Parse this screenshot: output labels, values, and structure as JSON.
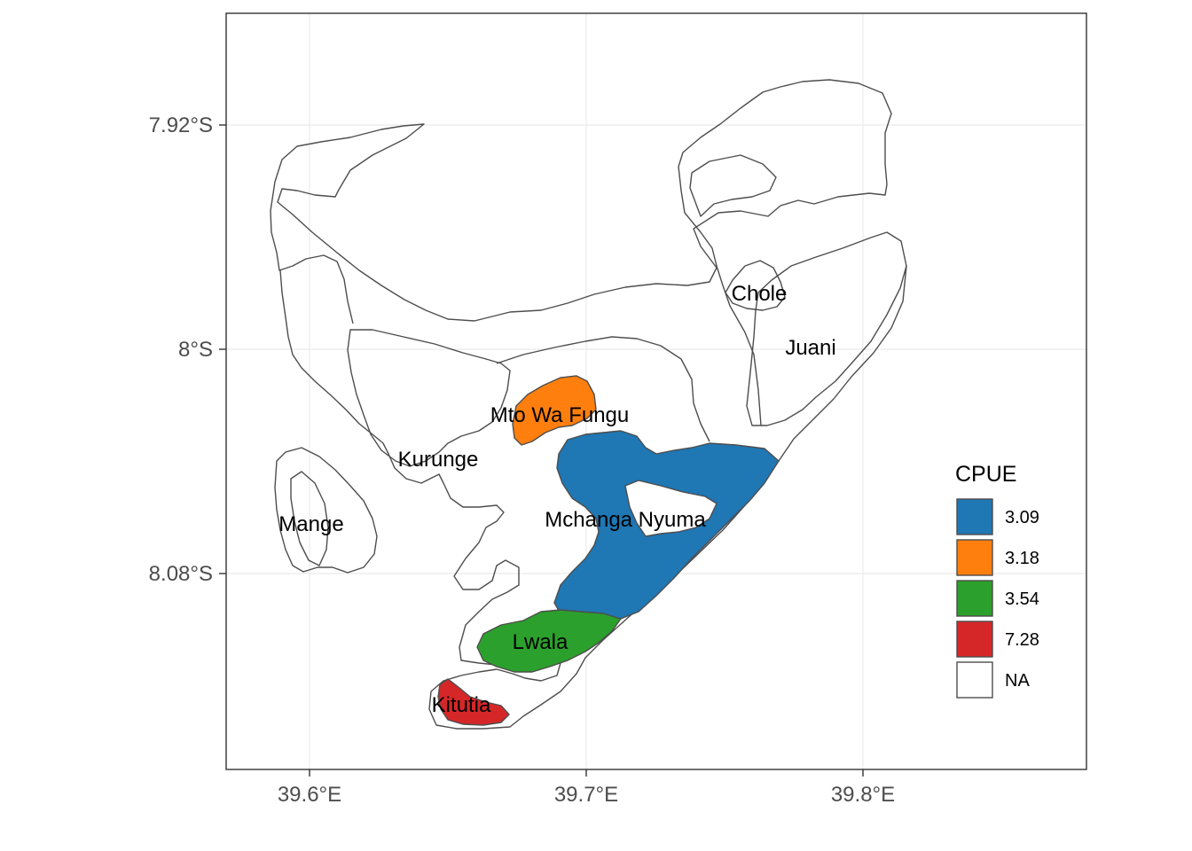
{
  "map": {
    "x_ticks": [
      {
        "value": 39.6,
        "label": "39.6°E"
      },
      {
        "value": 39.7,
        "label": "39.7°E"
      },
      {
        "value": 39.8,
        "label": "39.8°E"
      }
    ],
    "y_ticks": [
      {
        "value": -7.92,
        "label": "7.92°S"
      },
      {
        "value": -8.0,
        "label": "8°S"
      },
      {
        "value": -8.08,
        "label": "8.08°S"
      }
    ],
    "regions": [
      {
        "name": "Chole",
        "cpue": null
      },
      {
        "name": "Juani",
        "cpue": null
      },
      {
        "name": "Mto Wa Fungu",
        "cpue": 3.18
      },
      {
        "name": "Kurunge",
        "cpue": null
      },
      {
        "name": "Mchanga Nyuma",
        "cpue": 3.09
      },
      {
        "name": "Mange",
        "cpue": null
      },
      {
        "name": "Lwala",
        "cpue": 3.54
      },
      {
        "name": "Kitutia",
        "cpue": 7.28
      }
    ],
    "legend": {
      "title": "CPUE",
      "placement": "right",
      "items": [
        {
          "label": "3.09",
          "color": "#1f77b4"
        },
        {
          "label": "3.18",
          "color": "#ff7f0e"
        },
        {
          "label": "3.54",
          "color": "#2ca02c"
        },
        {
          "label": "7.28",
          "color": "#d62728"
        },
        {
          "label": "NA",
          "color": "#ffffff"
        }
      ]
    }
  }
}
